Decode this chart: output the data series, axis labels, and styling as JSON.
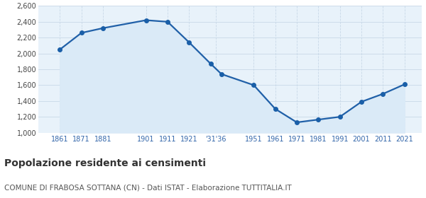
{
  "years": [
    1861,
    1871,
    1881,
    1901,
    1911,
    1921,
    1931,
    1936,
    1951,
    1961,
    1971,
    1981,
    1991,
    2001,
    2011,
    2021
  ],
  "population": [
    2050,
    2260,
    2320,
    2420,
    2400,
    2140,
    1870,
    1740,
    1600,
    1300,
    1130,
    1165,
    1200,
    1390,
    1490,
    1610
  ],
  "x_tick_positions": [
    1861,
    1871,
    1881,
    1901,
    1911,
    1921,
    1933.5,
    1951,
    1961,
    1971,
    1981,
    1991,
    2001,
    2011,
    2021
  ],
  "x_tick_labels": [
    "1861",
    "1871",
    "1881",
    "1901",
    "1911",
    "1921",
    "'31'36",
    "1951",
    "1961",
    "1971",
    "1981",
    "1991",
    "2001",
    "2011",
    "2021"
  ],
  "ylim": [
    1000,
    2600
  ],
  "yticks": [
    1000,
    1200,
    1400,
    1600,
    1800,
    2000,
    2200,
    2400,
    2600
  ],
  "line_color": "#2060a8",
  "fill_color": "#daeaf7",
  "marker_color": "#1a5fa8",
  "grid_color": "#c8d8e8",
  "background_color": "#e8f2fa",
  "tick_label_color": "#3366aa",
  "title": "Popolazione residente ai censimenti",
  "subtitle": "COMUNE DI FRABOSA SOTTANA (CN) - Dati ISTAT - Elaborazione TUTTITALIA.IT",
  "title_fontsize": 10,
  "subtitle_fontsize": 7.5,
  "xlim_left": 1851,
  "xlim_right": 2029
}
